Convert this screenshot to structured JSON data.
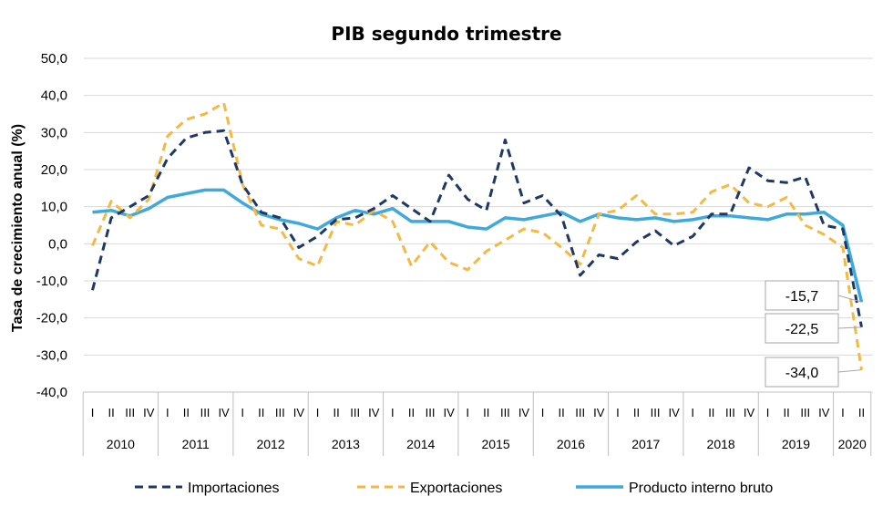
{
  "chart_data": {
    "type": "line",
    "title": "PIB segundo trimestre",
    "ylabel": "Tasa de crecimiento anual (%)",
    "xlabel": "",
    "ylim": [
      -40,
      50
    ],
    "yticks": [
      "50,0",
      "40,0",
      "30,0",
      "20,0",
      "10,0",
      "0,0",
      "-10,0",
      "-20,0",
      "-30,0",
      "-40,0"
    ],
    "grid": true,
    "legend_position": "bottom",
    "years": [
      "2010",
      "2011",
      "2012",
      "2013",
      "2014",
      "2015",
      "2016",
      "2017",
      "2018",
      "2019",
      "2020"
    ],
    "quarters": [
      "I",
      "II",
      "III",
      "IV",
      "I",
      "II",
      "III",
      "IV",
      "I",
      "II",
      "III",
      "IV",
      "I",
      "II",
      "III",
      "IV",
      "I",
      "II",
      "III",
      "IV",
      "I",
      "II",
      "III",
      "IV",
      "I",
      "II",
      "III",
      "IV",
      "I",
      "II",
      "III",
      "IV",
      "I",
      "II",
      "III",
      "IV",
      "I",
      "II",
      "III",
      "IV",
      "I",
      "II"
    ],
    "series": [
      {
        "name": "Importaciones",
        "color": "#1f3864",
        "style": "dashed",
        "values": [
          -12.5,
          7.0,
          10.0,
          13.0,
          23.0,
          28.5,
          30.0,
          30.5,
          16.0,
          8.5,
          7.0,
          -1.0,
          2.0,
          6.5,
          7.0,
          9.5,
          13.0,
          9.5,
          6.0,
          18.5,
          12.0,
          9.0,
          28.0,
          11.0,
          13.0,
          7.5,
          -8.5,
          -3.0,
          -4.0,
          0.5,
          3.5,
          -0.5,
          2.0,
          8.0,
          8.0,
          20.5,
          17.0,
          16.5,
          18.0,
          5.0,
          4.0,
          -22.5
        ]
      },
      {
        "name": "Exportaciones",
        "color": "#f4b942",
        "style": "dashed",
        "values": [
          -0.5,
          11.5,
          7.0,
          12.0,
          29.0,
          33.5,
          35.0,
          38.0,
          16.0,
          5.0,
          4.0,
          -4.0,
          -6.0,
          6.0,
          5.0,
          9.0,
          6.0,
          -6.0,
          0.5,
          -5.0,
          -7.0,
          -2.0,
          1.0,
          4.0,
          3.0,
          -1.0,
          -5.5,
          8.0,
          9.0,
          13.0,
          8.0,
          8.0,
          8.5,
          14.0,
          16.0,
          11.0,
          10.0,
          12.5,
          5.0,
          2.5,
          -1.0,
          -34.0
        ]
      },
      {
        "name": "Producto interno bruto",
        "color": "#3fa9dc",
        "style": "solid",
        "values": [
          8.5,
          9.0,
          7.5,
          9.5,
          12.5,
          13.5,
          14.5,
          14.5,
          11.0,
          8.0,
          6.5,
          5.5,
          4.0,
          7.0,
          9.0,
          8.0,
          9.5,
          6.0,
          6.0,
          6.0,
          4.5,
          4.0,
          7.0,
          6.5,
          7.5,
          8.5,
          6.0,
          8.0,
          7.0,
          6.5,
          7.0,
          6.0,
          6.5,
          7.5,
          7.5,
          7.0,
          6.5,
          8.0,
          8.0,
          8.5,
          5.0,
          -15.7
        ]
      }
    ],
    "annotations": [
      {
        "text": "-15,7",
        "series": "Producto interno bruto",
        "value": -15.7
      },
      {
        "text": "-22,5",
        "series": "Importaciones",
        "value": -22.5
      },
      {
        "text": "-34,0",
        "series": "Exportaciones",
        "value": -34.0
      }
    ]
  }
}
